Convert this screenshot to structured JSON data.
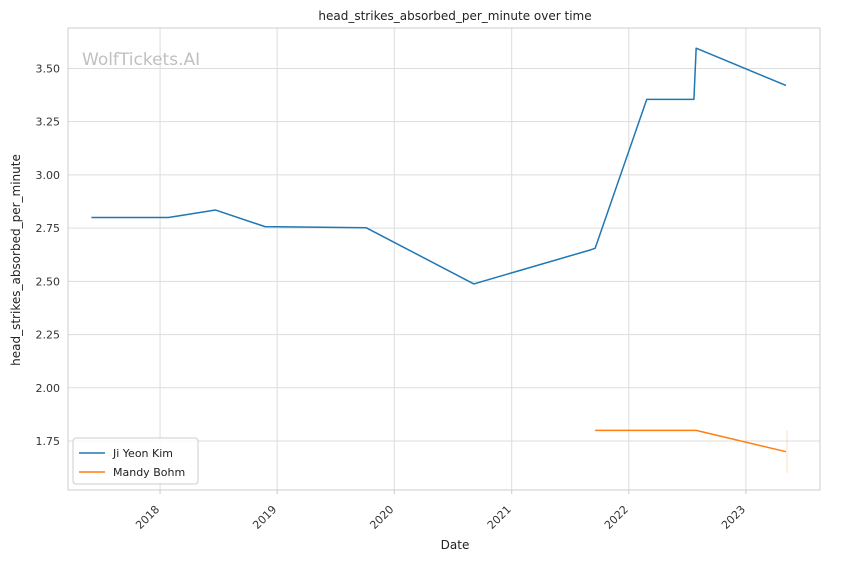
{
  "chart_data": {
    "type": "line",
    "title": "head_strikes_absorbed_per_minute over time",
    "xlabel": "Date",
    "ylabel": "head_strikes_absorbed_per_minute",
    "watermark": "WolfTickets.AI",
    "x_ticks": [
      "2018",
      "2019",
      "2020",
      "2021",
      "2022",
      "2023"
    ],
    "y_ticks": [
      "1.75",
      "2.00",
      "2.25",
      "2.50",
      "2.75",
      "3.00",
      "3.25",
      "3.50"
    ],
    "xlim": [
      "2017-03-20",
      "2023-08-20"
    ],
    "ylim": [
      1.52,
      3.69
    ],
    "grid": true,
    "legend_position": "lower-left",
    "series": [
      {
        "name": "Ji Yeon Kim",
        "color": "#1f77b4",
        "points": [
          {
            "x": "2017-06-01",
            "y": 2.8
          },
          {
            "x": "2018-01-27",
            "y": 2.8
          },
          {
            "x": "2018-06-23",
            "y": 2.835
          },
          {
            "x": "2018-11-24",
            "y": 2.757
          },
          {
            "x": "2019-10-05",
            "y": 2.752
          },
          {
            "x": "2020-09-05",
            "y": 2.488
          },
          {
            "x": "2021-09-04",
            "y": 2.648
          },
          {
            "x": "2021-09-18",
            "y": 2.655
          },
          {
            "x": "2022-02-26",
            "y": 3.355
          },
          {
            "x": "2022-07-23",
            "y": 3.355
          },
          {
            "x": "2022-07-30",
            "y": 3.595
          },
          {
            "x": "2023-05-06",
            "y": 3.42
          }
        ]
      },
      {
        "name": "Mandy Bohm",
        "color": "#ff7f0e",
        "points": [
          {
            "x": "2021-09-18",
            "y": 1.8
          },
          {
            "x": "2022-07-30",
            "y": 1.8
          },
          {
            "x": "2023-05-06",
            "y": 1.7
          }
        ]
      }
    ]
  }
}
